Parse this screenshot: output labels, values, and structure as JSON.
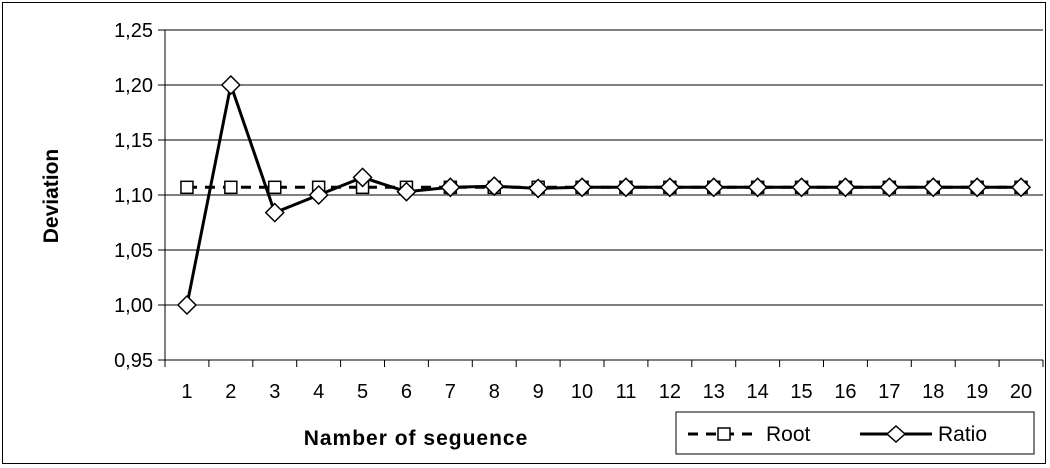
{
  "chart_data": {
    "type": "line",
    "title": "",
    "xlabel": "Namber of seguence",
    "ylabel": "Deviation",
    "categories": [
      "1",
      "2",
      "3",
      "4",
      "5",
      "6",
      "7",
      "8",
      "9",
      "10",
      "11",
      "12",
      "13",
      "14",
      "15",
      "16",
      "17",
      "18",
      "19",
      "20"
    ],
    "ylim": [
      0.95,
      1.25
    ],
    "yticks": [
      "0,95",
      "1,00",
      "1,05",
      "1,10",
      "1,15",
      "1,20",
      "1,25"
    ],
    "ytick_values": [
      0.95,
      1.0,
      1.05,
      1.1,
      1.15,
      1.2,
      1.25
    ],
    "grid": true,
    "legend_position": "bottom-right",
    "series": [
      {
        "name": "Root",
        "style": "dashed",
        "marker": "square",
        "color": "#000000",
        "values": [
          1.107,
          1.107,
          1.107,
          1.107,
          1.107,
          1.107,
          1.107,
          1.107,
          1.107,
          1.107,
          1.107,
          1.107,
          1.107,
          1.107,
          1.107,
          1.107,
          1.107,
          1.107,
          1.107,
          1.107
        ]
      },
      {
        "name": "Ratio",
        "style": "solid",
        "marker": "diamond",
        "color": "#000000",
        "values": [
          1.0,
          1.2,
          1.084,
          1.1,
          1.116,
          1.103,
          1.107,
          1.108,
          1.106,
          1.107,
          1.107,
          1.107,
          1.107,
          1.107,
          1.107,
          1.107,
          1.107,
          1.107,
          1.107,
          1.107
        ]
      }
    ]
  }
}
